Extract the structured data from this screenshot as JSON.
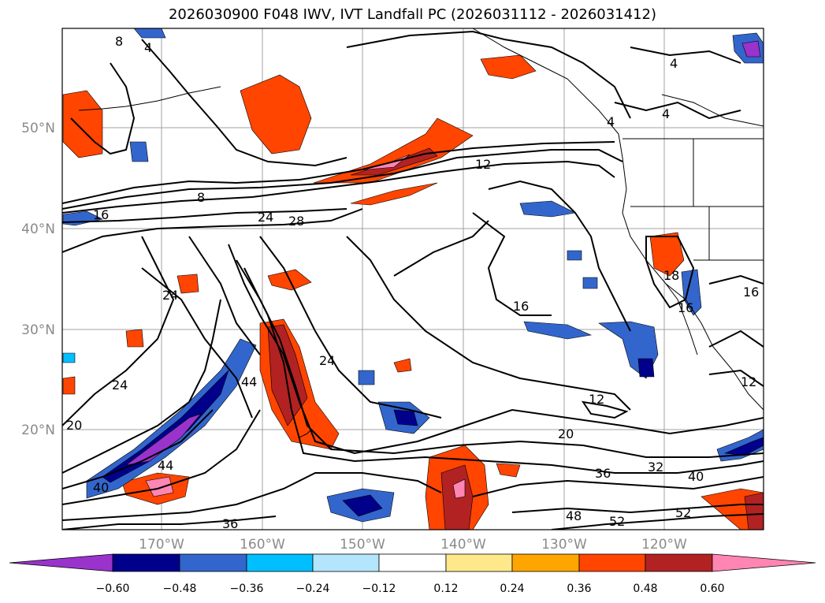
{
  "title": "2026030900 F048 IWV, IVT Landfall PC (2026031112 - 2026031412)",
  "lat_labels": [
    "50°N",
    "40°N",
    "30°N",
    "20°N"
  ],
  "lon_labels": [
    "170°W",
    "160°W",
    "150°W",
    "140°W",
    "130°W",
    "120°W"
  ],
  "colorbar": {
    "labels": [
      "−0.60",
      "−0.48",
      "−0.36",
      "−0.24",
      "−0.12",
      "0.12",
      "0.24",
      "0.36",
      "0.48",
      "0.60"
    ],
    "colors": [
      "#9933cc",
      "#00008b",
      "#3366cc",
      "#00bfff",
      "#b3e5fc",
      "#ffffff",
      "#ffe88a",
      "#ffa500",
      "#ff4500",
      "#b22222",
      "#ff85b3"
    ]
  },
  "contour_labels": [
    "8",
    "4",
    "12",
    "8",
    "16",
    "24",
    "28",
    "24",
    "16",
    "24",
    "20",
    "24",
    "44",
    "12",
    "20",
    "36",
    "32",
    "40",
    "52",
    "48",
    "52",
    "36",
    "44",
    "40",
    "16",
    "18",
    "16",
    "12",
    "4",
    "4",
    "4"
  ]
}
